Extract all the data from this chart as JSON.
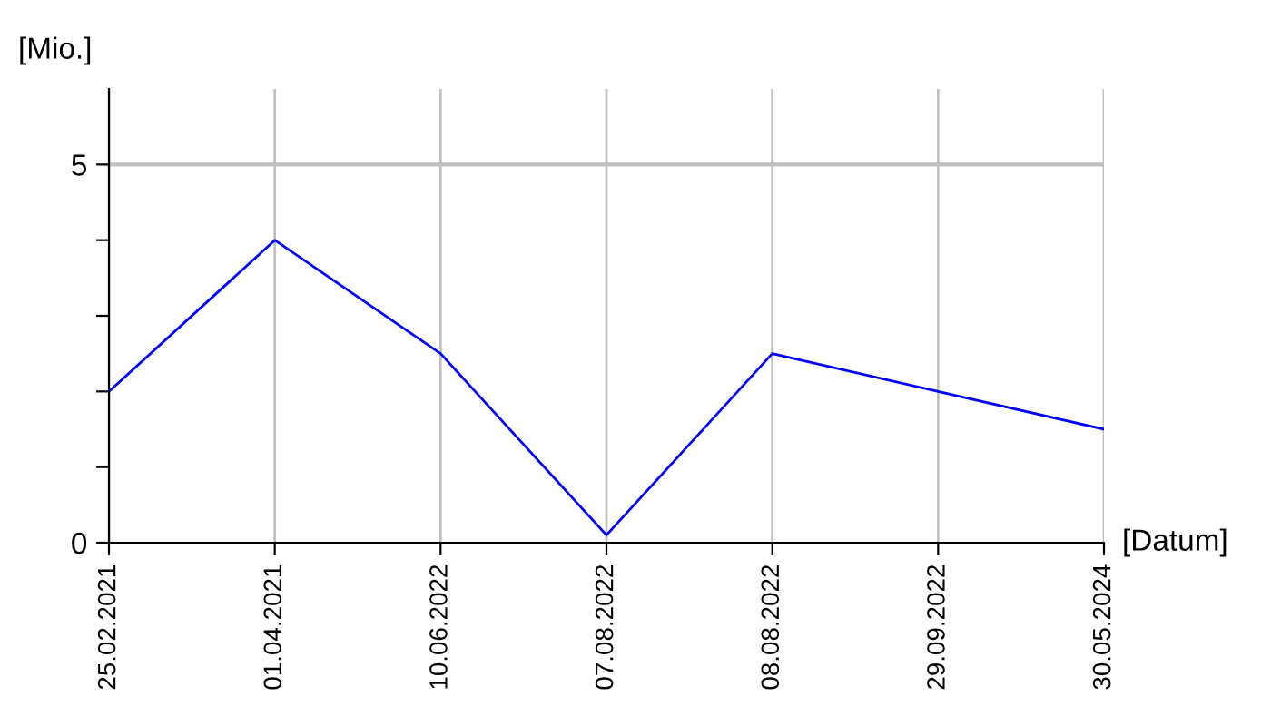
{
  "chart_data": {
    "type": "line",
    "categories": [
      "25.02.2021",
      "01.04.2021",
      "10.06.2022",
      "07.08.2022",
      "08.08.2022",
      "29.09.2022",
      "30.05.2024"
    ],
    "series": [
      {
        "color": "#0000ff",
        "values": [
          2.0,
          4.0,
          2.5,
          0.1,
          2.5,
          2.0,
          1.5
        ]
      }
    ],
    "xlabel": "[Datum]",
    "ylabel": "[Mio.]",
    "ylim": [
      0,
      6
    ],
    "yticks": [
      0,
      {
        "value": 1,
        "label": null
      },
      {
        "value": 2,
        "label": null
      },
      {
        "value": 3,
        "label": null
      },
      {
        "value": 4,
        "label": null
      },
      5
    ],
    "grid": "x",
    "ref_lines": [
      {
        "axis": "y",
        "value": 5,
        "color": "#c0c0c0"
      }
    ],
    "marker": "none",
    "line_style": "solid"
  }
}
